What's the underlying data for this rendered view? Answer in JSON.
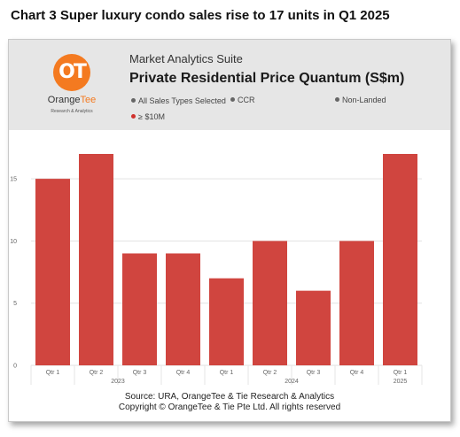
{
  "heading": "Chart 3 Super luxury condo sales rise to 17 units in Q1 2025",
  "header": {
    "suite": "Market Analytics Suite",
    "title": "Private Residential Price Quantum (S$m)",
    "logo_glyph": "OT",
    "logo_name_a": "Orange",
    "logo_name_b": "Tee",
    "logo_sub": "Research & Analytics",
    "brand_color": "#f47a20"
  },
  "filters": [
    {
      "label": "All Sales Types Selected",
      "color": "#666666"
    },
    {
      "label": "CCR",
      "color": "#666666"
    },
    {
      "label": "Non-Landed",
      "color": "#666666"
    },
    {
      "label": "≥ $10M",
      "color": "#d0312d"
    }
  ],
  "chart_data": {
    "type": "bar",
    "categories": [
      "Qtr 1",
      "Qtr 2",
      "Qtr 3",
      "Qtr 4",
      "Qtr 1",
      "Qtr 2",
      "Qtr 3",
      "Qtr 4",
      "Qtr 1"
    ],
    "year_groups": [
      {
        "label": "2023",
        "start": 0,
        "end": 3
      },
      {
        "label": "2024",
        "start": 4,
        "end": 7
      },
      {
        "label": "2025",
        "start": 8,
        "end": 8
      }
    ],
    "values": [
      15,
      17,
      9,
      9,
      7,
      10,
      6,
      10,
      17
    ],
    "yticks": [
      0,
      5,
      10,
      15
    ],
    "ylim": [
      0,
      18
    ],
    "bar_color": "#d0453f",
    "grid": true
  },
  "source": {
    "line1": "Source: URA, OrangeTee & Tie Research & Analytics",
    "line2": "Copyright © OrangeTee & Tie Pte Ltd. All rights reserved"
  }
}
